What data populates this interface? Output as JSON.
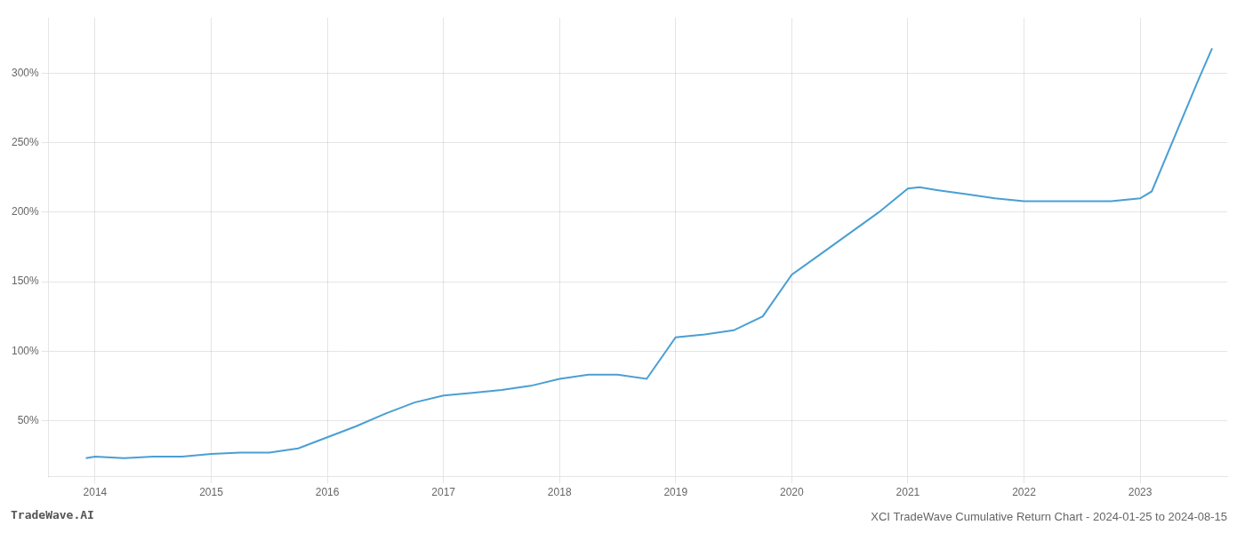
{
  "chart_data": {
    "type": "line",
    "title": "XCI TradeWave Cumulative Return Chart - 2024-01-25 to 2024-08-15",
    "annotations": [
      "TradeWave.AI"
    ],
    "x": [
      2013.92,
      2014.0,
      2014.25,
      2014.5,
      2014.75,
      2015.0,
      2015.25,
      2015.5,
      2015.75,
      2016.0,
      2016.25,
      2016.5,
      2016.75,
      2017.0,
      2017.25,
      2017.5,
      2017.75,
      2018.0,
      2018.25,
      2018.5,
      2018.75,
      2019.0,
      2019.25,
      2019.5,
      2019.75,
      2020.0,
      2020.25,
      2020.5,
      2020.75,
      2021.0,
      2021.1,
      2021.25,
      2021.5,
      2021.75,
      2022.0,
      2022.25,
      2022.5,
      2022.75,
      2023.0,
      2023.1,
      2023.5,
      2023.62
    ],
    "values": [
      23,
      24,
      23,
      24,
      24,
      26,
      27,
      27,
      30,
      38,
      46,
      55,
      63,
      68,
      70,
      72,
      75,
      80,
      83,
      83,
      80,
      110,
      112,
      115,
      125,
      155,
      170,
      185,
      200,
      217,
      218,
      216,
      213,
      210,
      208,
      208,
      208,
      208,
      210,
      215,
      295,
      318
    ],
    "color": "#4a9fd4",
    "xlim": [
      2013.6,
      2023.75
    ],
    "xticks": [
      2014,
      2015,
      2016,
      2017,
      2018,
      2019,
      2020,
      2021,
      2022,
      2023
    ],
    "ylim": [
      10,
      340
    ],
    "yticks": [
      {
        "value": 50,
        "label": "50%"
      },
      {
        "value": 100,
        "label": "100%"
      },
      {
        "value": 150,
        "label": "150%"
      },
      {
        "value": 200,
        "label": "200%"
      },
      {
        "value": 250,
        "label": "250%"
      },
      {
        "value": 300,
        "label": "300%"
      }
    ],
    "grid": true
  }
}
